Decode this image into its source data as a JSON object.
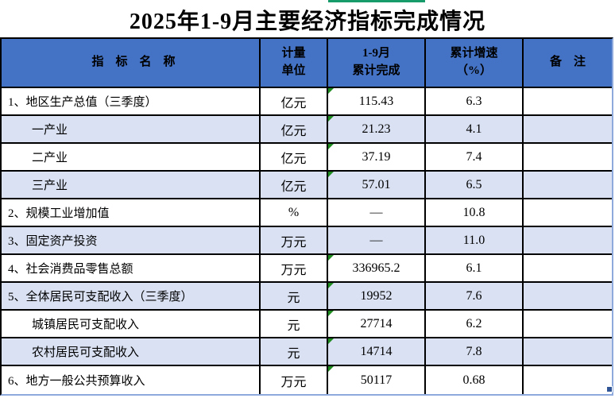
{
  "page": {
    "title": "2025年1-9月主要经济指标完成情况"
  },
  "colors": {
    "header_bg": "#4472c4",
    "shaded_row_bg": "#d9e1f2",
    "grid_border": "#000000",
    "selection_border": "#8ea9db",
    "error_flag_green": "#1e8c1e",
    "top_selection_green": "#179b6a",
    "fill_handle_blue": "#2f5597"
  },
  "table": {
    "headers": {
      "name": "指　标　名　称",
      "unit": "计量\n单位",
      "value": "1-9月\n累计完成",
      "growth": "累计增速\n（%）",
      "note": "备　注"
    },
    "rows": [
      {
        "label": "1、地区生产总值（三季度）",
        "unit": "亿元",
        "value": "115.43",
        "growth": "6.3",
        "note": "",
        "flag": true
      },
      {
        "label": "一产业",
        "unit": "亿元",
        "value": "21.23",
        "growth": "4.1",
        "note": "",
        "flag": true
      },
      {
        "label": "二产业",
        "unit": "亿元",
        "value": "37.19",
        "growth": "7.4",
        "note": "",
        "flag": true
      },
      {
        "label": "三产业",
        "unit": "亿元",
        "value": "57.01",
        "growth": "6.5",
        "note": "",
        "flag": true
      },
      {
        "label": "2、规模工业增加值",
        "unit": "%",
        "value": "—",
        "growth": "10.8",
        "note": "",
        "flag": false
      },
      {
        "label": "3、固定资产投资",
        "unit": "万元",
        "value": "—",
        "growth": "11.0",
        "note": "",
        "flag": false
      },
      {
        "label": "4、社会消费品零售总额",
        "unit": "万元",
        "value": "336965.2",
        "growth": "6.1",
        "note": "",
        "flag": true
      },
      {
        "label": "5、全体居民可支配收入（三季度）",
        "unit": "元",
        "value": "19952",
        "growth": "7.6",
        "note": "",
        "flag": true
      },
      {
        "label": "城镇居民可支配收入",
        "unit": "元",
        "value": "27714",
        "growth": "6.2",
        "note": "",
        "flag": true
      },
      {
        "label": "农村居民可支配收入",
        "unit": "元",
        "value": "14714",
        "growth": "7.8",
        "note": "",
        "flag": true
      },
      {
        "label": "6、地方一般公共预算收入",
        "unit": "万元",
        "value": "50117",
        "growth": "0.68",
        "note": "",
        "flag": true
      }
    ]
  },
  "markers": {
    "error_flag_icon": "green-corner-triangle",
    "fill_handle_icon": "selection-fill-handle"
  }
}
